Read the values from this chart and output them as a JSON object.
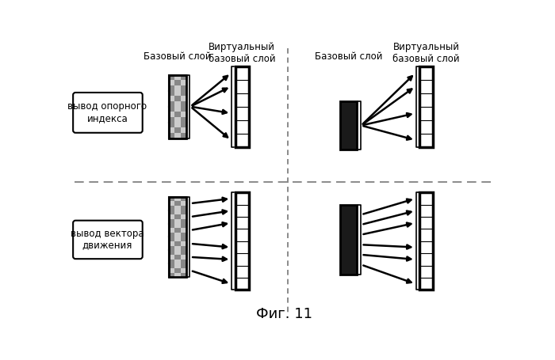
{
  "title": "Фиг. 11",
  "label_tl_col1": "Базовый слой",
  "label_tl_col2": "Виртуальный\nбазовый слой",
  "label_tr_col1": "Базовый слой",
  "label_tr_col2": "Виртуальный\nбазовый слой",
  "row1_label": "вывод опорного\nиндекса",
  "row2_label": "вывод вектора\nдвижения",
  "bg_color": "#ffffff"
}
